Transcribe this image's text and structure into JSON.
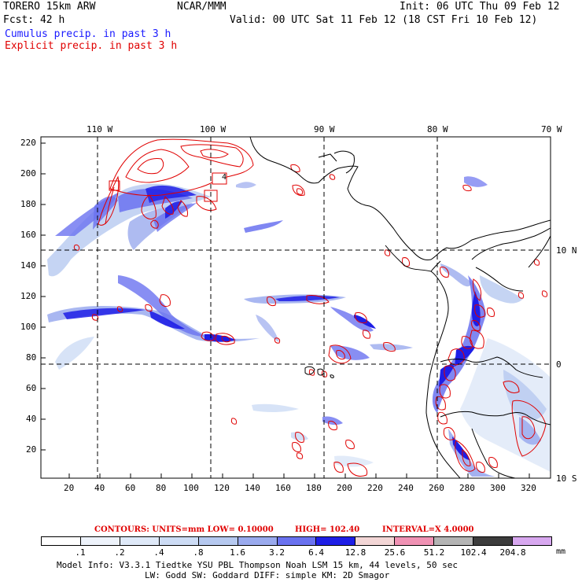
{
  "header": {
    "model": "TORERO  15km ARW",
    "org": "NCAR/MMM",
    "init": "Init: 06 UTC Thu 09 Feb 12",
    "fcst": "Fcst:   42 h",
    "valid": "Valid: 00 UTC Sat 11 Feb 12 (18 CST Fri 10 Feb 12)",
    "legend_cumulus": "Cumulus precip. in past 3 h",
    "legend_explicit": "Explicit precip. in past 3 h"
  },
  "map": {
    "top_lon_labels": [
      "110 W",
      "100 W",
      "90 W",
      "80 W",
      "70 W"
    ],
    "right_lat_labels": [
      "10 N",
      "0",
      "10 S"
    ],
    "y_ticks": [
      "220",
      "200",
      "180",
      "160",
      "140",
      "120",
      "100",
      "80",
      "60",
      "40",
      "20"
    ],
    "x_ticks": [
      "20",
      "40",
      "60",
      "80",
      "100",
      "120",
      "140",
      "160",
      "180",
      "200",
      "220",
      "240",
      "260",
      "280",
      "300",
      "320"
    ],
    "box_label": "4"
  },
  "contours_line": {
    "label": "CONTOURS:  UNITS=mm  LOW= 0.10000",
    "high": "HIGH=  102.40",
    "interval": "INTERVAL=X  4.0000"
  },
  "colorbar": {
    "labels": [
      ".1",
      ".2",
      ".4",
      ".8",
      "1.6",
      "3.2",
      "6.4",
      "12.8",
      "25.6",
      "51.2",
      "102.4",
      "204.8"
    ],
    "unit": "mm",
    "colors": [
      "#ffffff",
      "#eef3fb",
      "#dfe9f8",
      "#cddcf5",
      "#b6c9f0",
      "#9aaaee",
      "#6a72f0",
      "#1e1ee6",
      "#f3d6d6",
      "#f092b4",
      "#b4b4b4",
      "#3c3c3c",
      "#d8a8f0"
    ]
  },
  "footer": {
    "line1": "Model Info: V3.3.1    Tiedtke YSU PBL  Thompson     Noah LSM  15 km,    44 levels,    50 sec",
    "line2": "LW: Godd SW: Goddard DIFF: simple KM: 2D Smagor"
  }
}
